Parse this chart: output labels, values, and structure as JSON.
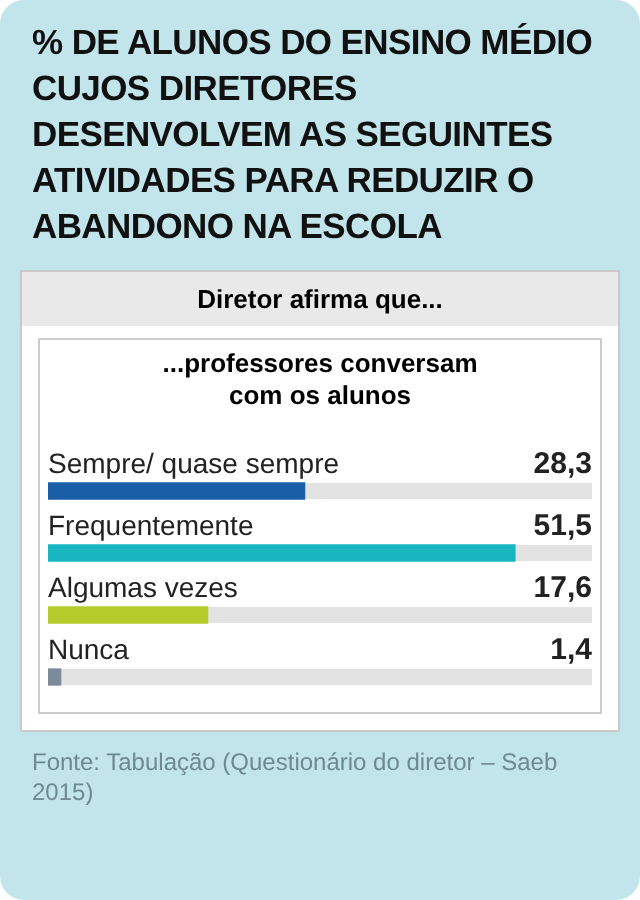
{
  "chart_data": {
    "type": "bar",
    "orientation": "horizontal",
    "title": "% DE ALUNOS DO ENSINO MÉDIO CUJOS DIRETORES DESENVOLVEM AS SEGUINTES ATIVIDADES PARA REDUZIR O ABANDONO NA ESCOLA",
    "subtitle": "Diretor afirma que...",
    "categories": [
      "Sempre/ quase sempre",
      "Frequentemente",
      "Algumas vezes",
      "Nunca"
    ],
    "values": [
      28.3,
      51.5,
      17.6,
      1.4
    ],
    "value_labels": [
      "28,3",
      "51,5",
      "17,6",
      "1,4"
    ],
    "colors": [
      "#1b5ea8",
      "#19b6c2",
      "#b6cc2c",
      "#7b8b9a"
    ],
    "annotations": [
      "...professores conversam com os alunos",
      "Fonte: Tabulação (Questionário do diretor – Saeb 2015)"
    ]
  }
}
